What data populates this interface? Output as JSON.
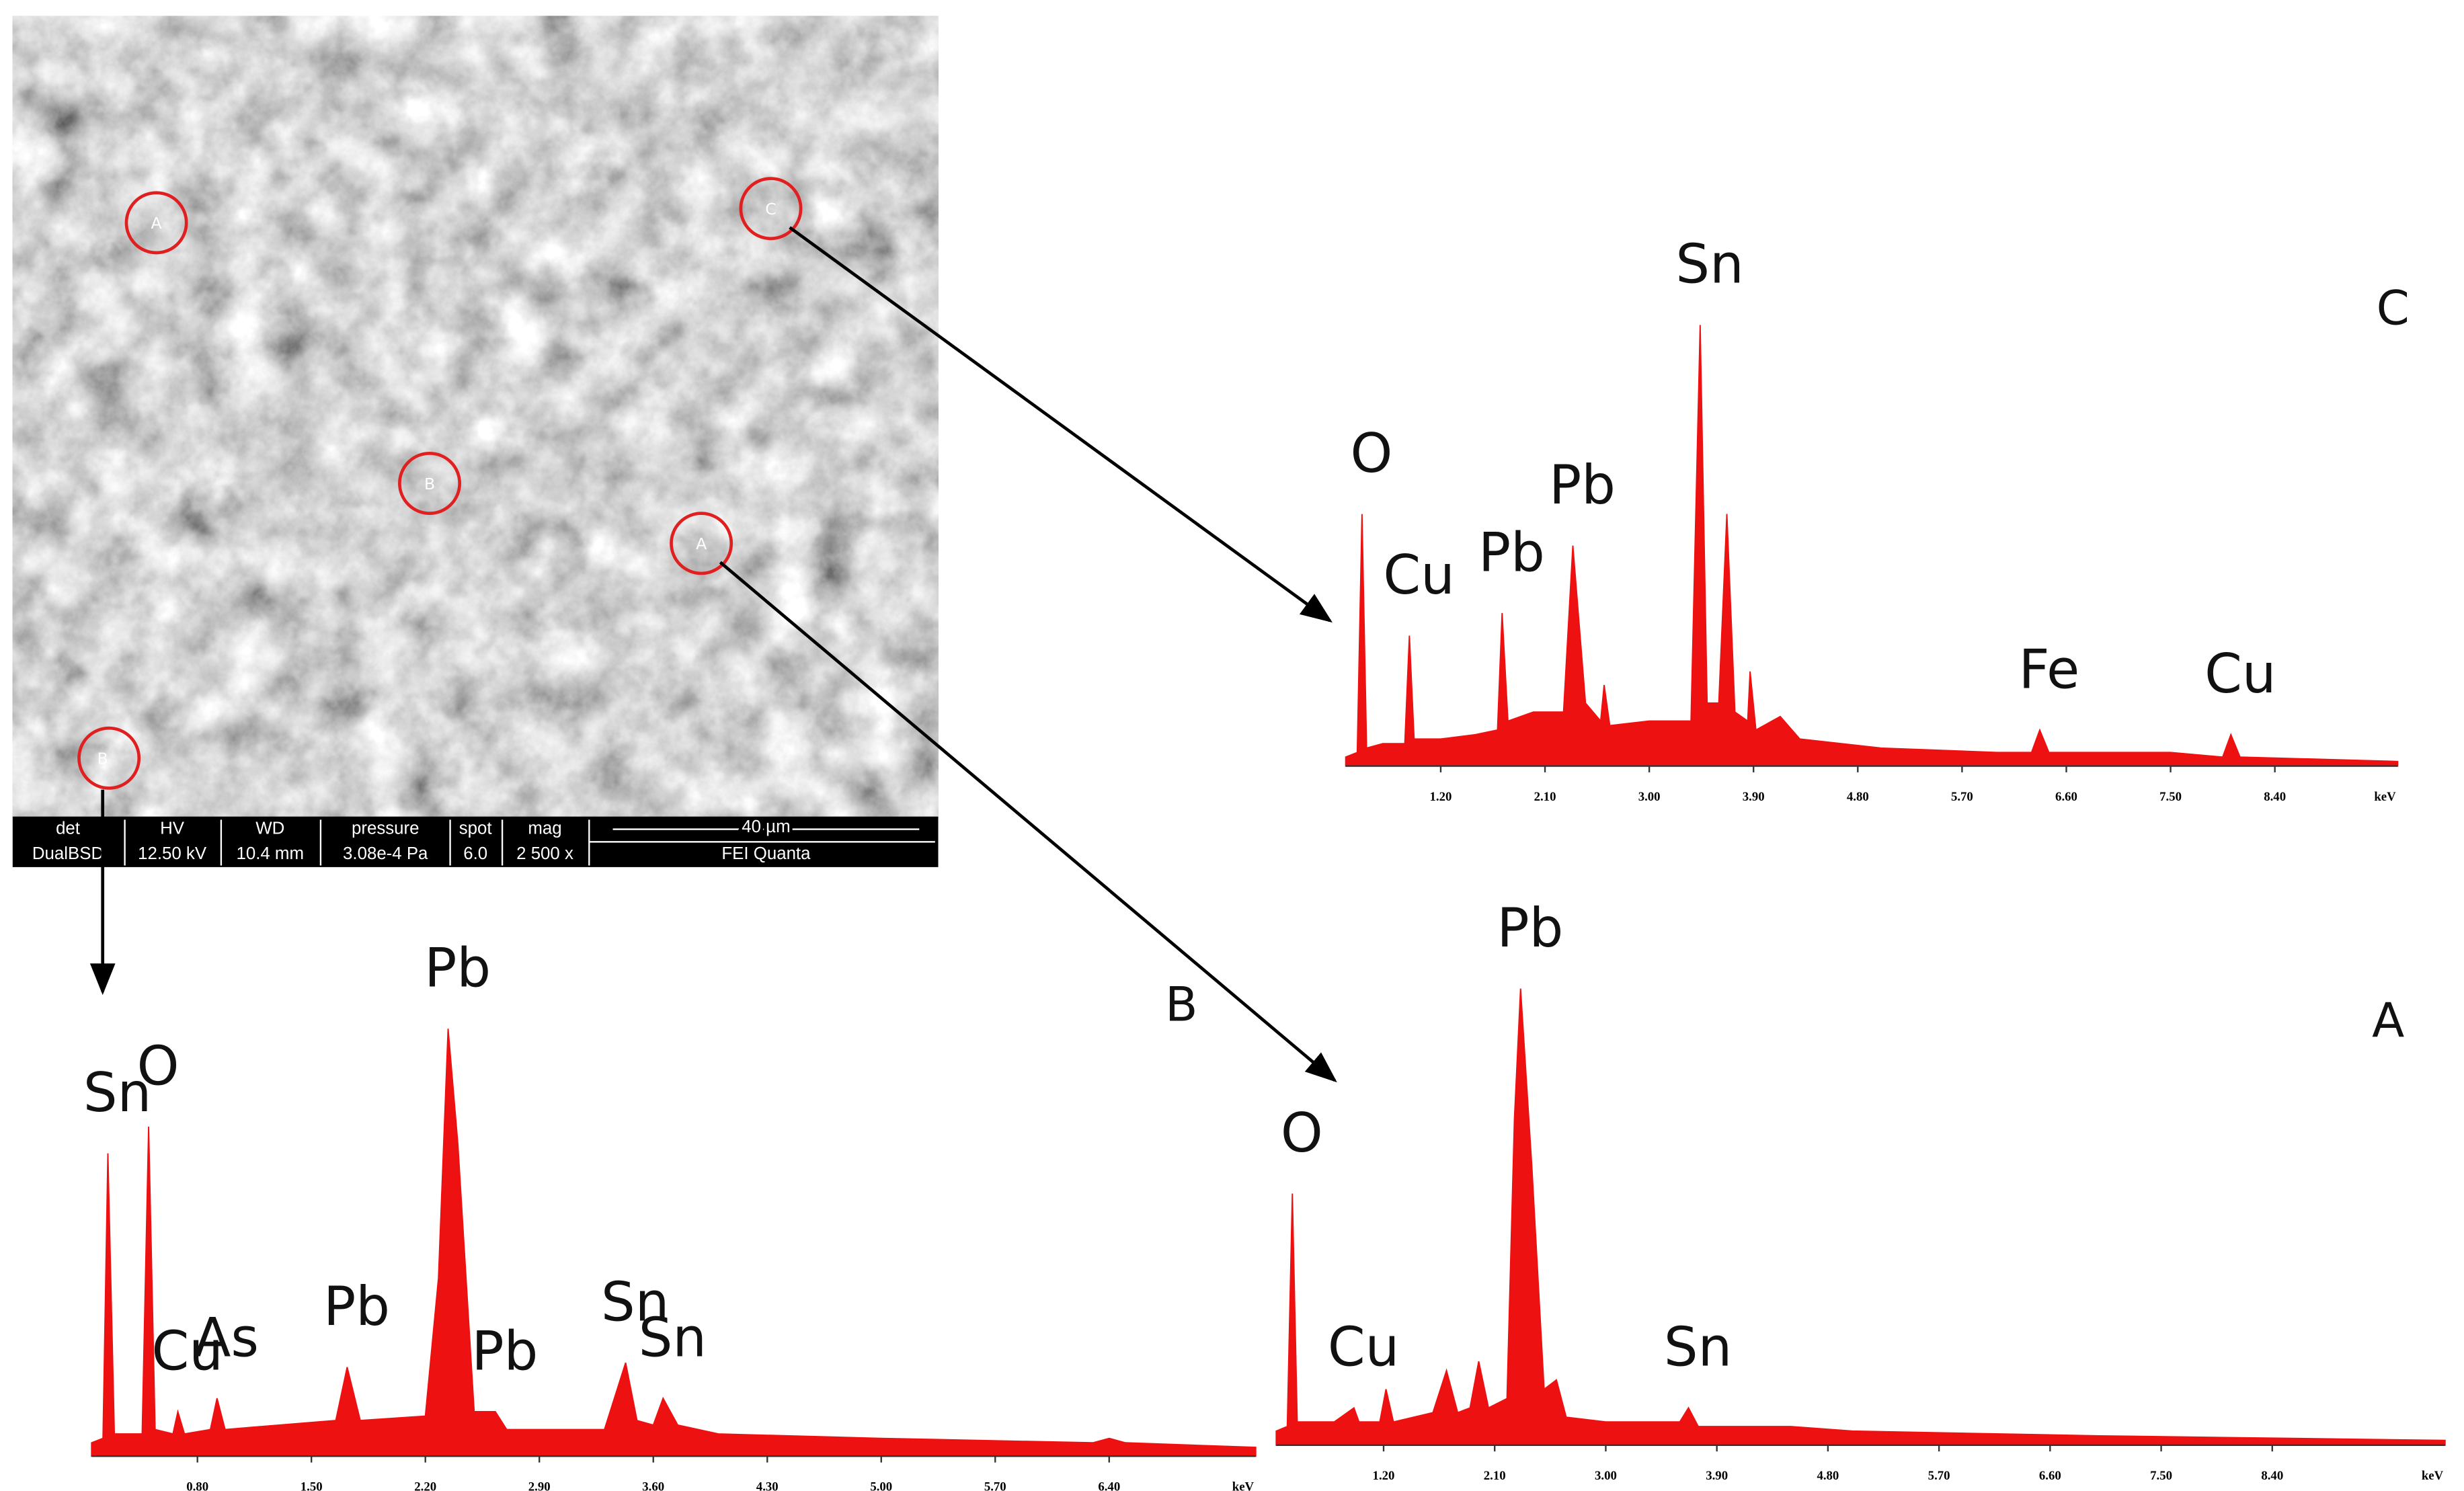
{
  "image": {
    "markers": [
      {
        "label": "A"
      },
      {
        "label": "C"
      },
      {
        "label": "B"
      },
      {
        "label": "A"
      },
      {
        "label": "B"
      }
    ],
    "info_bar": {
      "headers": [
        "det",
        "HV",
        "WD",
        "pressure",
        "spot",
        "mag"
      ],
      "values": [
        "DualBSD",
        "12.50 kV",
        "10.4 mm",
        "3.08e-4 Pa",
        "6.0",
        "2 500 x"
      ],
      "scale": "40 µm",
      "instrument": "FEI Quanta"
    }
  },
  "chart_data": [
    {
      "type": "area",
      "title": "C",
      "x_label": "keV",
      "color": "#ee1111",
      "xlim": [
        0.38,
        9.46
      ],
      "ylim": [
        0,
        100
      ],
      "xticks": [
        {
          "value": 1.2,
          "label": "1.20"
        },
        {
          "value": 2.1,
          "label": "2.10"
        },
        {
          "value": 3,
          "label": "3.00"
        },
        {
          "value": 3.9,
          "label": "3.90"
        },
        {
          "value": 4.8,
          "label": "4.80"
        },
        {
          "value": 5.7,
          "label": "5.70"
        },
        {
          "value": 6.6,
          "label": "6.60"
        },
        {
          "value": 7.5,
          "label": "7.50"
        },
        {
          "value": 8.4,
          "label": "8.40"
        }
      ],
      "x": [
        0.38,
        0.48,
        0.52,
        0.56,
        0.7,
        0.89,
        0.93,
        0.97,
        1.2,
        1.5,
        1.69,
        1.73,
        1.78,
        2.0,
        2.26,
        2.34,
        2.45,
        2.58,
        2.61,
        2.66,
        3.0,
        3.36,
        3.44,
        3.5,
        3.6,
        3.67,
        3.74,
        3.85,
        3.87,
        3.92,
        4.13,
        4.3,
        5.0,
        6.0,
        6.3,
        6.37,
        6.45,
        7.5,
        7.95,
        8.02,
        8.1,
        9.46
      ],
      "values": [
        2,
        3,
        56,
        4,
        5,
        5,
        29,
        6,
        6,
        7,
        8,
        34,
        10,
        12,
        12,
        49,
        14,
        10,
        18,
        9,
        10,
        10,
        98,
        14,
        14,
        56,
        12,
        10,
        21,
        8,
        11,
        6,
        4,
        3,
        3,
        8,
        3,
        3,
        2,
        7,
        2,
        1
      ],
      "annotations": [
        {
          "text": "O",
          "x": 0.52
        },
        {
          "text": "Cu",
          "x": 0.93
        },
        {
          "text": "Pb",
          "x": 1.73
        },
        {
          "text": "Pb",
          "x": 2.34
        },
        {
          "text": "Sn",
          "x": 3.44
        },
        {
          "text": "Fe",
          "x": 6.37
        },
        {
          "text": "Cu",
          "x": 8.02
        }
      ]
    },
    {
      "type": "area",
      "title": "B",
      "x_label": "keV",
      "color": "#ee1111",
      "xlim": [
        0.15,
        7.3
      ],
      "ylim": [
        0,
        100
      ],
      "xticks": [
        {
          "value": 0.8,
          "label": "0.80"
        },
        {
          "value": 1.5,
          "label": "1.50"
        },
        {
          "value": 2.2,
          "label": "2.20"
        },
        {
          "value": 2.9,
          "label": "2.90"
        },
        {
          "value": 3.6,
          "label": "3.60"
        },
        {
          "value": 4.3,
          "label": "4.30"
        },
        {
          "value": 5,
          "label": "5.00"
        },
        {
          "value": 5.7,
          "label": "5.70"
        },
        {
          "value": 6.4,
          "label": "6.40"
        }
      ],
      "x": [
        0.15,
        0.22,
        0.25,
        0.29,
        0.46,
        0.5,
        0.54,
        0.65,
        0.68,
        0.72,
        0.88,
        0.92,
        0.97,
        1.3,
        1.65,
        1.72,
        1.8,
        2.2,
        2.28,
        2.34,
        2.4,
        2.5,
        2.63,
        2.7,
        3.3,
        3.43,
        3.5,
        3.6,
        3.66,
        3.75,
        4.0,
        5.0,
        6.3,
        6.4,
        6.5,
        7.3
      ],
      "values": [
        3,
        4,
        68,
        5,
        5,
        74,
        6,
        5,
        10,
        5,
        6,
        13,
        6,
        7,
        8,
        20,
        8,
        9,
        40,
        96,
        70,
        10,
        10,
        6,
        6,
        21,
        8,
        7,
        13,
        7,
        5,
        4,
        3,
        4,
        3,
        2
      ],
      "annotations": [
        {
          "text": "Sn",
          "x": 0.25
        },
        {
          "text": "O",
          "x": 0.5
        },
        {
          "text": "Cu",
          "x": 0.68
        },
        {
          "text": "As",
          "x": 0.92
        },
        {
          "text": "Pb",
          "x": 1.72
        },
        {
          "text": "Pb",
          "x": 2.34
        },
        {
          "text": "Pb",
          "x": 2.63
        },
        {
          "text": "Sn",
          "x": 3.43
        },
        {
          "text": "Sn",
          "x": 3.66
        }
      ]
    },
    {
      "type": "area",
      "title": "A",
      "x_label": "keV",
      "color": "#ee1111",
      "xlim": [
        0.33,
        9.8
      ],
      "ylim": [
        0,
        100
      ],
      "xticks": [
        {
          "value": 1.2,
          "label": "1.20"
        },
        {
          "value": 2.1,
          "label": "2.10"
        },
        {
          "value": 3,
          "label": "3.00"
        },
        {
          "value": 3.9,
          "label": "3.90"
        },
        {
          "value": 4.8,
          "label": "4.80"
        },
        {
          "value": 5.7,
          "label": "5.70"
        },
        {
          "value": 6.6,
          "label": "6.60"
        },
        {
          "value": 7.5,
          "label": "7.50"
        },
        {
          "value": 8.4,
          "label": "8.40"
        }
      ],
      "x": [
        0.33,
        0.42,
        0.46,
        0.5,
        0.8,
        0.96,
        1.0,
        1.17,
        1.22,
        1.28,
        1.6,
        1.71,
        1.8,
        1.9,
        1.97,
        2.05,
        2.2,
        2.26,
        2.31,
        2.4,
        2.5,
        2.6,
        2.68,
        3.0,
        3.6,
        3.67,
        3.75,
        4.5,
        5.0,
        7.0,
        9.8
      ],
      "values": [
        3,
        4,
        54,
        5,
        5,
        8,
        5,
        5,
        12,
        5,
        7,
        16,
        7,
        8,
        18,
        8,
        10,
        70,
        98,
        60,
        12,
        14,
        6,
        5,
        5,
        8,
        4,
        4,
        3,
        2,
        1
      ],
      "annotations": [
        {
          "text": "O",
          "x": 0.46
        },
        {
          "text": "Cu",
          "x": 0.96
        },
        {
          "text": "Pb",
          "x": 2.31
        },
        {
          "text": "Sn",
          "x": 3.67
        }
      ]
    }
  ]
}
